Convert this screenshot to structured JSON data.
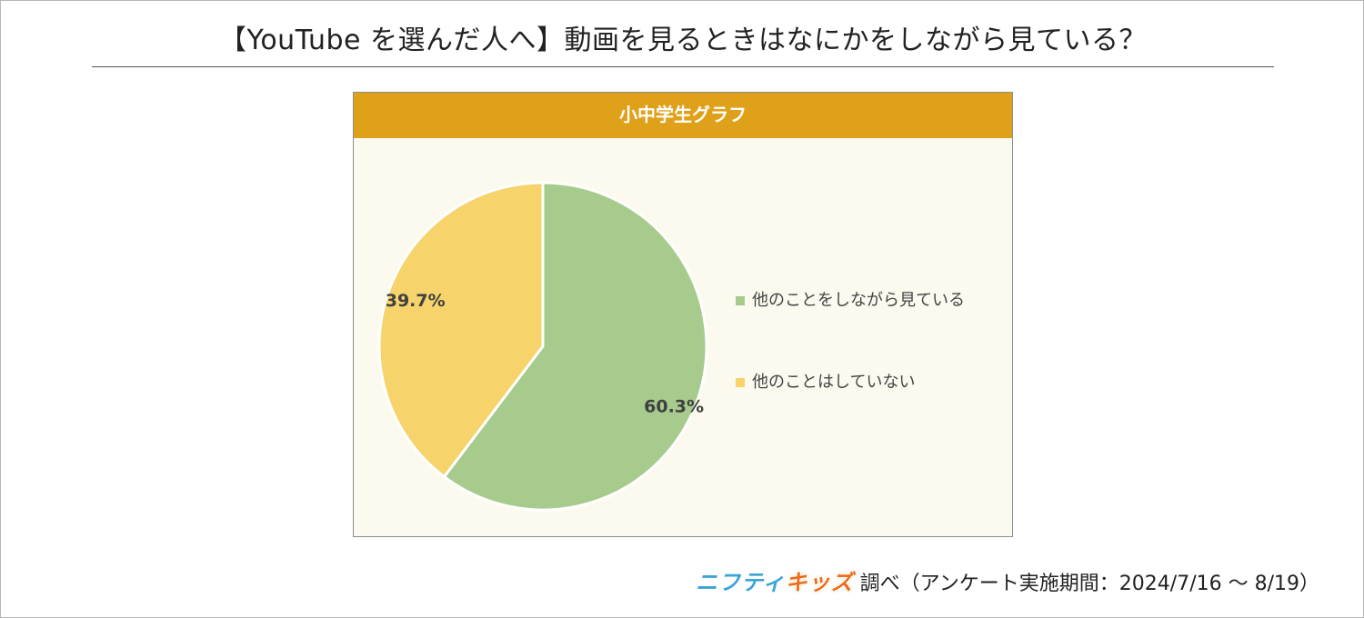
{
  "title": "【YouTube を選んだ人へ】動画を見るときはなにかをしながら見ている？",
  "colors": {
    "header_bg": "#e0a11a",
    "plot_bg": "#fcfaee",
    "slice_1": "#a6cb8c",
    "slice_2": "#f6d36b"
  },
  "chart_data": {
    "type": "pie",
    "title": "小中学生グラフ",
    "legend_position": "right",
    "slices": [
      {
        "label": "他のことをしながら見ている",
        "value": 60.3,
        "display": "60.3%",
        "color": "#a6cb8c"
      },
      {
        "label": "他のことはしていない",
        "value": 39.7,
        "display": "39.7%",
        "color": "#f6d36b"
      }
    ]
  },
  "source": {
    "logo_part1": "ニフティ",
    "logo_part2": "キッズ",
    "text": "調べ（アンケート実施期間：2024/7/16 〜 8/19）"
  }
}
